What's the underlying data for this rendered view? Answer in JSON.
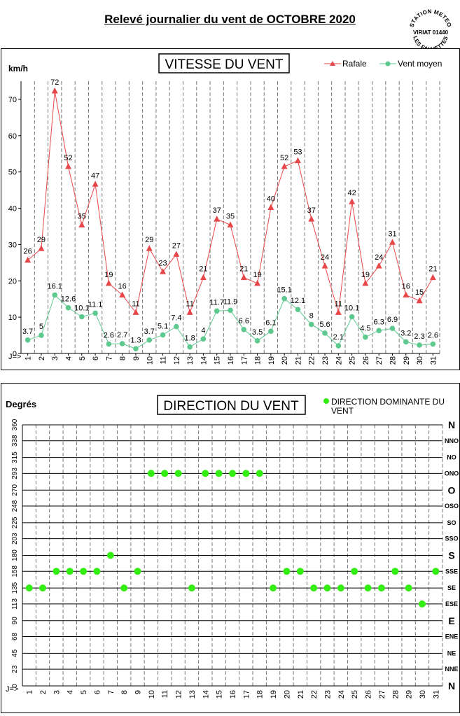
{
  "page": {
    "title_prefix": "Relevé journalier du vent de",
    "title_month": "OCTOBRE 2020"
  },
  "stamp": {
    "line1": "STATION METEO",
    "line2": "VIRIAT 01440",
    "line3": "LES FAUVETTES"
  },
  "chart_data": [
    {
      "type": "line",
      "title": "VITESSE DU VENT",
      "ylabel": "km/h",
      "xlabel": "J=>",
      "ylim": [
        0,
        75
      ],
      "yticks": [
        0,
        10,
        20,
        30,
        40,
        50,
        60,
        70
      ],
      "x": [
        1,
        2,
        3,
        4,
        5,
        6,
        7,
        8,
        9,
        10,
        11,
        12,
        13,
        14,
        15,
        16,
        17,
        18,
        19,
        20,
        21,
        22,
        23,
        24,
        25,
        26,
        27,
        28,
        29,
        30,
        31
      ],
      "grid": "vertical dashed",
      "legend": "top-right",
      "series": [
        {
          "name": "Rafale",
          "color": "#e8474a",
          "marker": "triangle",
          "values": [
            25.7,
            28.9,
            72.3,
            51.5,
            35.4,
            46.6,
            19.3,
            16.1,
            11.3,
            28.9,
            22.5,
            27.3,
            11.3,
            20.9,
            37.0,
            35.4,
            20.9,
            19.3,
            40.2,
            51.5,
            53.1,
            37.0,
            24.1,
            11.3,
            41.8,
            19.3,
            24.1,
            30.6,
            16.1,
            14.5,
            20.9
          ],
          "labels": [
            "26",
            "29",
            "72",
            "52",
            "35",
            "47",
            "19",
            "16",
            "11",
            "29",
            "23",
            "27",
            "11",
            "21",
            "37",
            "35",
            "21",
            "19",
            "40",
            "52",
            "53",
            "37",
            "24",
            "11",
            "42",
            "19",
            "24",
            "31",
            "16",
            "15",
            "21"
          ]
        },
        {
          "name": "Vent moyen",
          "color": "#5ec98f",
          "marker": "circle",
          "values": [
            3.7,
            5,
            16.1,
            12.6,
            10.1,
            11.1,
            2.6,
            2.7,
            1.3,
            3.7,
            5.1,
            7.4,
            1.8,
            4,
            11.7,
            11.9,
            6.6,
            3.5,
            6.1,
            15.1,
            12.1,
            8,
            5.6,
            2.1,
            10.1,
            4.5,
            6.3,
            6.9,
            3.2,
            2.3,
            2.6
          ],
          "labels": [
            "3.7",
            "5",
            "16.1",
            "12.6",
            "10.1",
            "11.1",
            "2.6",
            "2.7",
            "1.3",
            "3.7",
            "5.1",
            "7.4",
            "1.8",
            "4",
            "11.7",
            "11.9",
            "6.6",
            "3.5",
            "6.1",
            "15.1",
            "12.1",
            "8",
            "5.6",
            "2.1",
            "10.1",
            "4.5",
            "6.3",
            "6.9",
            "3.2",
            "2.3",
            "2.6"
          ]
        }
      ]
    },
    {
      "type": "scatter",
      "title": "DIRECTION DU VENT",
      "ylabel": "Degrés",
      "xlabel": "J=>",
      "ylim": [
        0,
        360
      ],
      "yticks": [
        0,
        23,
        45,
        68,
        90,
        113,
        135,
        158,
        180,
        203,
        225,
        248,
        270,
        293,
        315,
        338,
        360
      ],
      "right_labels": [
        "N",
        "NNE",
        "NE",
        "ENE",
        "E",
        "ESE",
        "SE",
        "SSE",
        "S",
        "SSO",
        "SO",
        "OSO",
        "O",
        "ONO",
        "NO",
        "NNO",
        "N"
      ],
      "x": [
        1,
        2,
        3,
        4,
        5,
        6,
        7,
        8,
        9,
        10,
        11,
        12,
        13,
        14,
        15,
        16,
        17,
        18,
        19,
        20,
        21,
        22,
        23,
        24,
        25,
        26,
        27,
        28,
        29,
        30,
        31
      ],
      "grid": "horizontal solid, vertical dashed",
      "legend": "top-right",
      "series": [
        {
          "name": "DIRECTION DOMINANTE DU VENT",
          "color": "#33ee11",
          "marker": "circle",
          "values": [
            135,
            135,
            158,
            158,
            158,
            158,
            180,
            135,
            158,
            293,
            293,
            293,
            135,
            293,
            293,
            293,
            293,
            293,
            135,
            158,
            158,
            135,
            135,
            135,
            158,
            135,
            135,
            158,
            135,
            113,
            158
          ]
        }
      ]
    }
  ]
}
